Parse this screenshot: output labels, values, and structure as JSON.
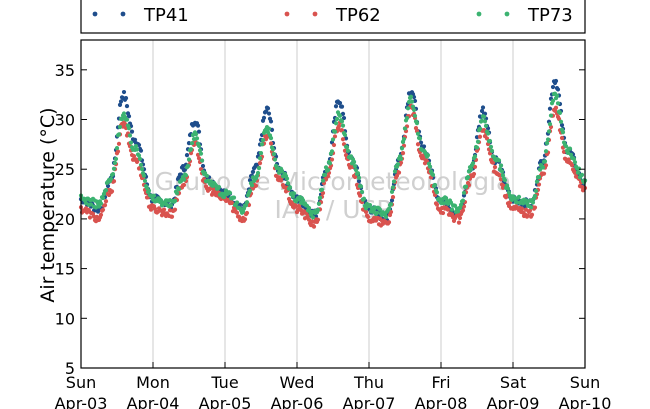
{
  "chart_data": {
    "type": "scatter",
    "title": "",
    "xlabel": "",
    "ylabel": "Air temperature (°C)",
    "ylim": [
      5,
      38
    ],
    "yticks": [
      5,
      10,
      15,
      20,
      25,
      30,
      35
    ],
    "xlim": [
      "Apr-03",
      "Apr-10"
    ],
    "xticks": [
      {
        "day": "Sun",
        "date": "Apr-03"
      },
      {
        "day": "Mon",
        "date": "Apr-04"
      },
      {
        "day": "Tue",
        "date": "Apr-05"
      },
      {
        "day": "Wed",
        "date": "Apr-06"
      },
      {
        "day": "Thu",
        "date": "Apr-07"
      },
      {
        "day": "Fri",
        "date": "Apr-08"
      },
      {
        "day": "Sat",
        "date": "Apr-09"
      },
      {
        "day": "Sun",
        "date": "Apr-10"
      }
    ],
    "grid": "vertical",
    "legend_position": "top",
    "watermark": [
      "Grupo de Micrometeorologia",
      "IAG / USP"
    ],
    "series": [
      {
        "name": "TP41",
        "color": "#1f4e8c",
        "x": [
          "Apr-03 00:00",
          "Apr-03 06:00",
          "Apr-03 10:00",
          "Apr-03 14:00",
          "Apr-03 18:00",
          "Apr-04 00:00",
          "Apr-04 06:00",
          "Apr-04 10:00",
          "Apr-04 14:00",
          "Apr-04 18:00",
          "Apr-05 00:00",
          "Apr-05 06:00",
          "Apr-05 10:00",
          "Apr-05 14:00",
          "Apr-05 18:00",
          "Apr-06 00:00",
          "Apr-06 06:00",
          "Apr-06 10:00",
          "Apr-06 14:00",
          "Apr-06 18:00",
          "Apr-07 00:00",
          "Apr-07 06:00",
          "Apr-07 10:00",
          "Apr-07 14:00",
          "Apr-07 18:00",
          "Apr-08 00:00",
          "Apr-08 06:00",
          "Apr-08 10:00",
          "Apr-08 14:00",
          "Apr-08 18:00",
          "Apr-09 00:00",
          "Apr-09 06:00",
          "Apr-09 10:00",
          "Apr-09 14:00",
          "Apr-09 18:00",
          "Apr-10 00:00"
        ],
        "y": [
          22,
          21,
          24,
          32.5,
          28,
          22,
          21.5,
          25,
          30,
          24,
          22.5,
          21,
          25,
          31,
          25,
          22,
          20.5,
          25,
          32,
          26,
          21,
          20,
          26,
          33,
          27,
          22,
          20.5,
          25,
          31,
          26,
          22,
          21.5,
          26,
          34,
          27,
          23.5
        ]
      },
      {
        "name": "TP62",
        "color": "#d9534f",
        "x": [
          "Apr-03 00:00",
          "Apr-03 06:00",
          "Apr-03 10:00",
          "Apr-03 14:00",
          "Apr-03 18:00",
          "Apr-04 00:00",
          "Apr-04 06:00",
          "Apr-04 10:00",
          "Apr-04 14:00",
          "Apr-04 18:00",
          "Apr-05 00:00",
          "Apr-05 06:00",
          "Apr-05 10:00",
          "Apr-05 14:00",
          "Apr-05 18:00",
          "Apr-06 00:00",
          "Apr-06 06:00",
          "Apr-06 10:00",
          "Apr-06 14:00",
          "Apr-06 18:00",
          "Apr-07 00:00",
          "Apr-07 06:00",
          "Apr-07 10:00",
          "Apr-07 14:00",
          "Apr-07 18:00",
          "Apr-08 00:00",
          "Apr-08 06:00",
          "Apr-08 10:00",
          "Apr-08 14:00",
          "Apr-08 18:00",
          "Apr-09 00:00",
          "Apr-09 06:00",
          "Apr-09 10:00",
          "Apr-09 14:00",
          "Apr-09 18:00",
          "Apr-10 00:00"
        ],
        "y": [
          21,
          20,
          23,
          29.5,
          26,
          21,
          20.5,
          23.5,
          27.5,
          23,
          22,
          20,
          23.5,
          28.5,
          24,
          21,
          19.5,
          24,
          29.5,
          25,
          20,
          19.5,
          25,
          31,
          26,
          21,
          20,
          24,
          29,
          25,
          21,
          20.5,
          24.5,
          31,
          26,
          23
        ]
      },
      {
        "name": "TP73",
        "color": "#3cb371",
        "x": [
          "Apr-03 00:00",
          "Apr-03 06:00",
          "Apr-03 10:00",
          "Apr-03 14:00",
          "Apr-03 18:00",
          "Apr-04 00:00",
          "Apr-04 06:00",
          "Apr-04 10:00",
          "Apr-04 14:00",
          "Apr-04 18:00",
          "Apr-05 00:00",
          "Apr-05 06:00",
          "Apr-05 10:00",
          "Apr-05 14:00",
          "Apr-05 18:00",
          "Apr-06 00:00",
          "Apr-06 06:00",
          "Apr-06 10:00",
          "Apr-06 14:00",
          "Apr-06 18:00",
          "Apr-07 00:00",
          "Apr-07 06:00",
          "Apr-07 10:00",
          "Apr-07 14:00",
          "Apr-07 18:00",
          "Apr-08 00:00",
          "Apr-08 06:00",
          "Apr-08 10:00",
          "Apr-08 14:00",
          "Apr-08 18:00",
          "Apr-09 00:00",
          "Apr-09 06:00",
          "Apr-09 10:00",
          "Apr-09 14:00",
          "Apr-09 18:00",
          "Apr-10 00:00"
        ],
        "y": [
          22,
          21.5,
          24,
          30.5,
          27,
          22,
          21.5,
          24,
          28.5,
          24,
          22.5,
          21,
          24,
          29,
          25,
          22,
          20.5,
          25,
          30.5,
          26,
          21,
          20.5,
          26,
          32,
          27,
          22,
          21,
          25,
          30,
          26,
          22,
          21.5,
          25.5,
          32.5,
          27,
          24
        ]
      }
    ]
  }
}
